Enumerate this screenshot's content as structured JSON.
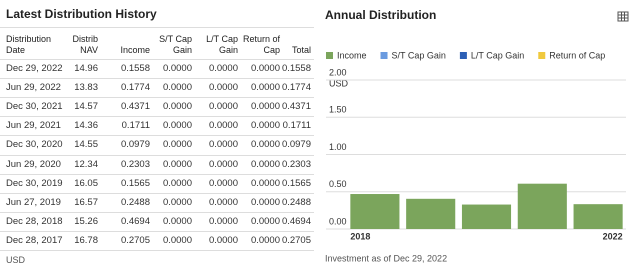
{
  "table": {
    "title": "Latest Distribution History",
    "columns": [
      "Distribution Date",
      "Distrib NAV",
      "Income",
      "S/T Cap Gain",
      "L/T Cap Gain",
      "Return of Cap",
      "Total"
    ],
    "rows": [
      [
        "Dec 29, 2022",
        "14.96",
        "0.1558",
        "0.0000",
        "0.0000",
        "0.0000",
        "0.1558"
      ],
      [
        "Jun 29, 2022",
        "13.83",
        "0.1774",
        "0.0000",
        "0.0000",
        "0.0000",
        "0.1774"
      ],
      [
        "Dec 30, 2021",
        "14.57",
        "0.4371",
        "0.0000",
        "0.0000",
        "0.0000",
        "0.4371"
      ],
      [
        "Jun 29, 2021",
        "14.36",
        "0.1711",
        "0.0000",
        "0.0000",
        "0.0000",
        "0.1711"
      ],
      [
        "Dec 30, 2020",
        "14.55",
        "0.0979",
        "0.0000",
        "0.0000",
        "0.0000",
        "0.0979"
      ],
      [
        "Jun 29, 2020",
        "12.34",
        "0.2303",
        "0.0000",
        "0.0000",
        "0.0000",
        "0.2303"
      ],
      [
        "Dec 30, 2019",
        "16.05",
        "0.1565",
        "0.0000",
        "0.0000",
        "0.0000",
        "0.1565"
      ],
      [
        "Jun 27, 2019",
        "16.57",
        "0.2488",
        "0.0000",
        "0.0000",
        "0.0000",
        "0.2488"
      ],
      [
        "Dec 28, 2018",
        "15.26",
        "0.4694",
        "0.0000",
        "0.0000",
        "0.0000",
        "0.4694"
      ],
      [
        "Dec 28, 2017",
        "16.78",
        "0.2705",
        "0.0000",
        "0.0000",
        "0.0000",
        "0.2705"
      ]
    ],
    "footnote": "USD"
  },
  "chart_data": {
    "type": "bar",
    "title": "Annual Distribution",
    "y_label": "USD",
    "categories": [
      "2018",
      null,
      null,
      null,
      "2022"
    ],
    "series": [
      {
        "name": "Income",
        "color": "#7ba55c",
        "values": [
          0.4694,
          0.4053,
          0.3282,
          0.6082,
          0.3332
        ]
      },
      {
        "name": "S/T Cap Gain",
        "color": "#6b9be0",
        "values": [
          0,
          0,
          0,
          0,
          0
        ]
      },
      {
        "name": "L/T Cap Gain",
        "color": "#2c5fb5",
        "values": [
          0,
          0,
          0,
          0,
          0
        ]
      },
      {
        "name": "Return of Cap",
        "color": "#f0c93e",
        "values": [
          0,
          0,
          0,
          0,
          0
        ]
      }
    ],
    "ylim": [
      0,
      2
    ],
    "yticks": [
      {
        "value": 0,
        "label": "0.00"
      },
      {
        "value": 0.5,
        "label": "0.50"
      },
      {
        "value": 1,
        "label": "1.00"
      },
      {
        "value": 1.5,
        "label": "1.50"
      },
      {
        "value": 2,
        "label": "2.00"
      }
    ],
    "grid": true,
    "footnote": "Investment as of Dec 29, 2022"
  }
}
